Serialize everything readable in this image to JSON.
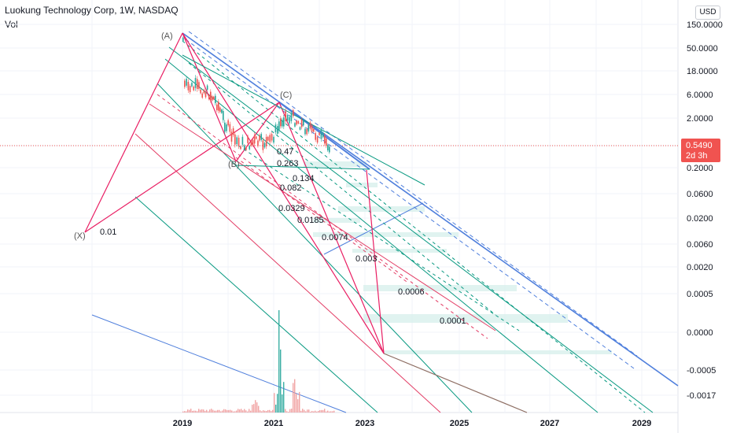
{
  "header": {
    "title": "Luokung Technology Corp, 1W, NASDAQ",
    "subtitle": "Vol",
    "currency": "USD"
  },
  "price_tag": {
    "value": "0.5490",
    "countdown": "2d 3h",
    "color": "#f05350"
  },
  "chart_data": {
    "type": "line",
    "title": "Luokung Technology Corp, 1W, NASDAQ",
    "y_scale": "log",
    "y_ticks": [
      "150.0000",
      "50.0000",
      "18.0000",
      "6.0000",
      "2.0000",
      "0.5490",
      "0.2000",
      "0.0600",
      "0.0200",
      "0.0060",
      "0.0020",
      "0.0005",
      "0.0000",
      "-0.0005",
      "-0.0017"
    ],
    "x_ticks": [
      "2019",
      "2021",
      "2023",
      "2025",
      "2027",
      "2029"
    ],
    "last_price": 0.549,
    "pivots": [
      {
        "label": "(A)"
      },
      {
        "label": "(B)"
      },
      {
        "label": "(C)"
      },
      {
        "label": "(X)"
      }
    ],
    "fib_levels": [
      "0.47",
      "0.263",
      "0.134",
      "0.082",
      "0.0329",
      "0.0185",
      "0.0074",
      "0.003",
      "0.0006",
      "0.0001",
      "0.01"
    ],
    "colors": {
      "blue": "#4f7fdc",
      "green": "#089981",
      "red": "#e33e66",
      "pink": "#e91e63",
      "candle_up": "#26a69a",
      "candle_down": "#ef5350",
      "volume": "#ef9a9a"
    }
  }
}
